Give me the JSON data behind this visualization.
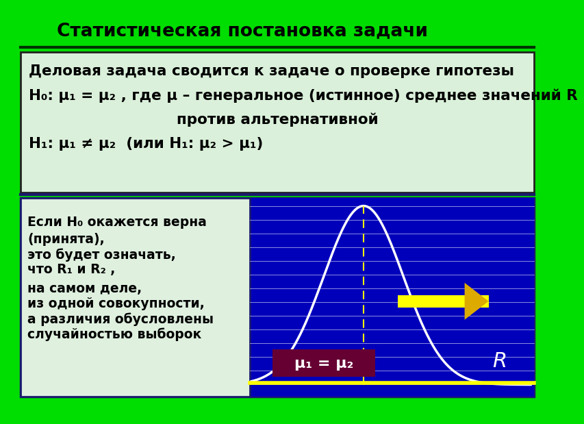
{
  "bg_color": "#00dd00",
  "title": "Статистическая постановка задачи",
  "title_color": "#000000",
  "title_fontsize": 19,
  "top_box_bg_top": "#e8f5e8",
  "top_box_bg_bot": "#c8e8c8",
  "top_box_border": "#222222",
  "top_box_line1": "Деловая задача сводится к задаче о проверке гипотезы",
  "top_box_line2": "H₀: μ₁ = μ₂ , где μ – генеральное (истинное) среднее значений R",
  "top_box_line3": "против альтернативной",
  "top_box_line4": "H₁: μ₁ ≠ μ₂  (или H₁: μ₂ > μ₁)",
  "bottom_left_box_bg": "#dff0df",
  "bottom_left_box_border": "#1a1a6e",
  "bottom_left_lines": [
    "Если H₀ окажется верна",
    "(принята),",
    "это будет означать,",
    "что R₁ и R₂ ,",
    "на самом деле,",
    "из одной совокупности,",
    "а различия обусловлены",
    "случайностью выборок"
  ],
  "chart_bg": "#0000bb",
  "chart_line_color": "#ffffff",
  "chart_line_alpha": 0.55,
  "curve_color": "#ffffff",
  "dashed_line_color": "#ffff00",
  "label_box_bg": "#660033",
  "label_text": "μ₁ = μ₂",
  "label_text_color": "#ffffff",
  "R_text_color": "#ffffff",
  "arrow_body_color": "#ffff00",
  "arrow_head_color": "#ddaa00",
  "bottom_yellow_line": "#ffff00",
  "underline_color": "#003300",
  "separator_color": "#1a1a6e"
}
